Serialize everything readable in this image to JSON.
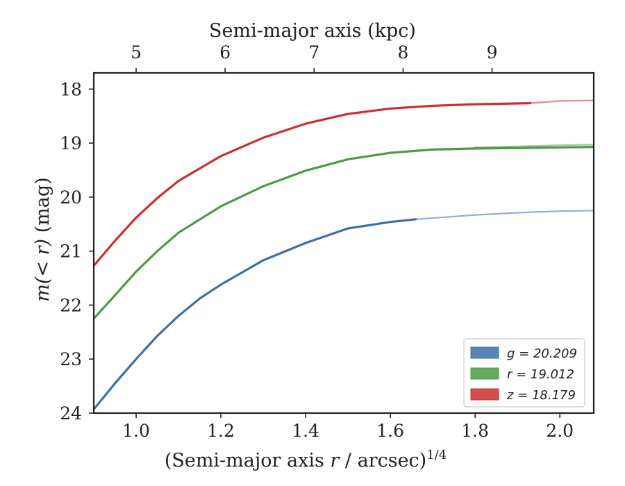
{
  "chart_data": {
    "type": "line",
    "xlabel_bottom": "(Semi-major axis r / arcsec)",
    "xlabel_bottom_superscript": "1/4",
    "xlabel_top": "Semi-major axis (kpc)",
    "ylabel": "m(< r) (mag)",
    "xlim": [
      0.9,
      2.08
    ],
    "ylim": [
      24,
      17.7
    ],
    "y_inverted": true,
    "x_ticks_bottom": [
      1.0,
      1.2,
      1.4,
      1.6,
      1.8,
      2.0
    ],
    "x_tick_labels_bottom": [
      "1.0",
      "1.2",
      "1.4",
      "1.6",
      "1.8",
      "2.0"
    ],
    "x_ticks_top_kpc": [
      5,
      6,
      7,
      8,
      9
    ],
    "x_ticks_top_positions": [
      1.0,
      1.21,
      1.42,
      1.63,
      1.84
    ],
    "y_ticks": [
      18,
      19,
      20,
      21,
      22,
      23,
      24
    ],
    "y_tick_labels": [
      "18",
      "19",
      "20",
      "21",
      "22",
      "23",
      "24"
    ],
    "legend_position": "lower-right",
    "series": [
      {
        "name": "g = 20.209",
        "color": "#3b6fa8",
        "band": "g",
        "value": "20.209",
        "x": [
          0.9,
          0.95,
          1.0,
          1.05,
          1.1,
          1.15,
          1.2,
          1.3,
          1.4,
          1.5,
          1.6,
          1.66
        ],
        "y": [
          23.93,
          23.45,
          23.0,
          22.57,
          22.2,
          21.88,
          21.62,
          21.17,
          20.85,
          20.58,
          20.46,
          20.41
        ],
        "extension_x": [
          1.66,
          1.8,
          1.9,
          2.0,
          2.08
        ],
        "extension_y": [
          20.41,
          20.33,
          20.29,
          20.26,
          20.25
        ]
      },
      {
        "name": "r = 19.012",
        "color": "#4c9a46",
        "band": "r",
        "value": "19.012",
        "x": [
          0.9,
          0.95,
          1.0,
          1.05,
          1.1,
          1.2,
          1.3,
          1.4,
          1.5,
          1.6,
          1.7,
          1.8,
          1.9,
          2.0,
          2.08
        ],
        "y": [
          22.25,
          21.82,
          21.38,
          21.0,
          20.66,
          20.17,
          19.8,
          19.51,
          19.3,
          19.18,
          19.12,
          19.1,
          19.09,
          19.08,
          19.07
        ],
        "extension_x": [
          1.8,
          1.9,
          2.0,
          2.08
        ],
        "extension_y": [
          19.08,
          19.06,
          19.04,
          19.03
        ]
      },
      {
        "name": "z = 18.179",
        "color": "#cc2e2e",
        "band": "z",
        "value": "18.179",
        "x": [
          0.9,
          0.95,
          1.0,
          1.05,
          1.1,
          1.2,
          1.3,
          1.4,
          1.5,
          1.6,
          1.7,
          1.8,
          1.93
        ],
        "y": [
          21.27,
          20.81,
          20.38,
          20.02,
          19.7,
          19.24,
          18.9,
          18.64,
          18.46,
          18.36,
          18.31,
          18.28,
          18.26
        ],
        "extension_x": [
          1.93,
          2.0,
          2.08
        ],
        "extension_y": [
          18.26,
          18.22,
          18.21
        ]
      }
    ]
  }
}
